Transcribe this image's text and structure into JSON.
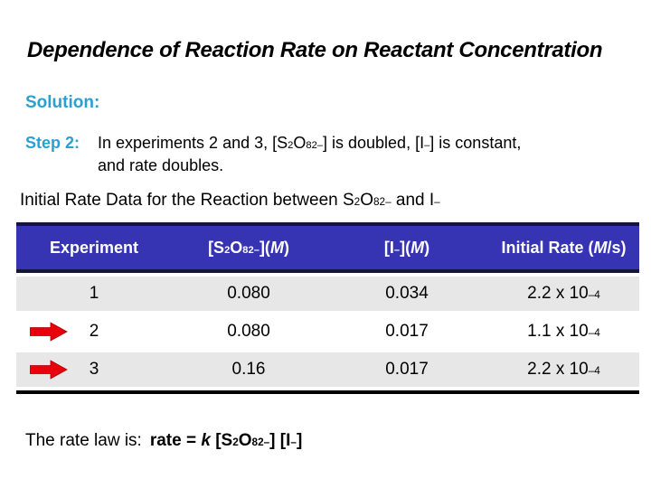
{
  "slide": {
    "title": "Dependence of Reaction Rate on Reactant Concentration",
    "solution_label": "Solution:",
    "step": {
      "label": "Step 2:",
      "line1": "In experiments 2 and 3, [S_{2}O_{8}^{2–}] is doubled, [I^{–}] is constant,",
      "line2": "and rate doubles."
    },
    "table": {
      "caption": "Initial Rate Data for the Reaction between S_{2}O_{8}^{2–} and I^{–}",
      "columns": [
        "Experiment",
        "[S_{2}O_{8}^{2–}](*M*)",
        "[I^{–}](*M*)",
        "Initial Rate (*M*/s)"
      ],
      "rows": [
        {
          "experiment": "1",
          "s2o8_conc": "0.080",
          "iodide_conc": "0.034",
          "initial_rate": "2.2 x 10^{–4}",
          "highlighted": false
        },
        {
          "experiment": "2",
          "s2o8_conc": "0.080",
          "iodide_conc": "0.017",
          "initial_rate": "1.1 x 10^{–4}",
          "highlighted": true
        },
        {
          "experiment": "3",
          "s2o8_conc": "0.16",
          "iodide_conc": "0.017",
          "initial_rate": "2.2 x 10^{–4}",
          "highlighted": true
        }
      ]
    },
    "rate_law": {
      "prefix": "The rate law is:",
      "equation": "rate = *k* [S_{2}O_{8}^{2–}] [I^{–}]"
    },
    "colors": {
      "header_blue": "#3634b2",
      "border_navy": "#14143c",
      "row_gray": "#e7e7e7",
      "accent_cyan": "#2aa0d2",
      "arrow_red": "#e8000d"
    }
  }
}
